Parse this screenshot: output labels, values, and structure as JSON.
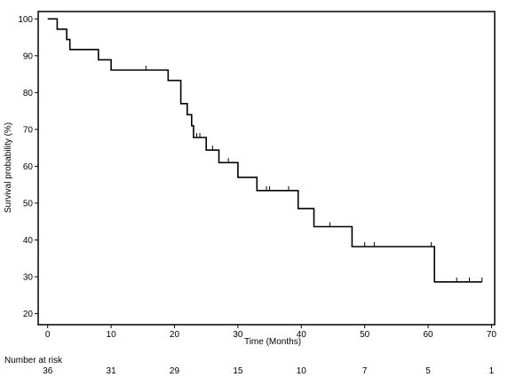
{
  "chart_data": {
    "type": "line",
    "subtype": "kaplan-meier",
    "title": "",
    "xlabel": "Time (Months)",
    "ylabel": "Survival probability (%)",
    "xlim": [
      -1.5,
      70.5
    ],
    "ylim": [
      17,
      102
    ],
    "xticks": [
      0,
      10,
      20,
      30,
      40,
      50,
      60,
      70
    ],
    "yticks": [
      20,
      30,
      40,
      50,
      60,
      70,
      80,
      90,
      100
    ],
    "grid": false,
    "series": [
      {
        "name": "",
        "color": "#000000",
        "step_points": [
          [
            0,
            100
          ],
          [
            1.5,
            100
          ],
          [
            1.5,
            97.2
          ],
          [
            3,
            97.2
          ],
          [
            3,
            94.4
          ],
          [
            3.5,
            94.4
          ],
          [
            3.5,
            91.7
          ],
          [
            8,
            91.7
          ],
          [
            8,
            88.9
          ],
          [
            10,
            88.9
          ],
          [
            10,
            86.1
          ],
          [
            19,
            86.1
          ],
          [
            19,
            83.3
          ],
          [
            21,
            83.3
          ],
          [
            21,
            77
          ],
          [
            22,
            77
          ],
          [
            22,
            74
          ],
          [
            22.7,
            74
          ],
          [
            22.7,
            71
          ],
          [
            23,
            71
          ],
          [
            23,
            67.8
          ],
          [
            25,
            67.8
          ],
          [
            25,
            64.4
          ],
          [
            27,
            64.4
          ],
          [
            27,
            61
          ],
          [
            30,
            61
          ],
          [
            30,
            57
          ],
          [
            33,
            57
          ],
          [
            33,
            53.4
          ],
          [
            39.5,
            53.4
          ],
          [
            39.5,
            48.5
          ],
          [
            42,
            48.5
          ],
          [
            42,
            43.6
          ],
          [
            48,
            43.6
          ],
          [
            48,
            38.2
          ],
          [
            61,
            38.2
          ],
          [
            61,
            28.6
          ],
          [
            68.5,
            28.6
          ]
        ],
        "censored": [
          [
            15.5,
            86.1
          ],
          [
            23.5,
            67.8
          ],
          [
            24,
            67.8
          ],
          [
            26,
            64.4
          ],
          [
            28.5,
            61
          ],
          [
            34.5,
            53.4
          ],
          [
            35,
            53.4
          ],
          [
            38,
            53.4
          ],
          [
            44.5,
            43.6
          ],
          [
            50,
            38.2
          ],
          [
            51.5,
            38.2
          ],
          [
            60.5,
            38.2
          ],
          [
            64.5,
            28.6
          ],
          [
            66.5,
            28.6
          ],
          [
            68.5,
            28.6
          ]
        ]
      }
    ],
    "risk_table": {
      "label": "Number at risk",
      "times": [
        0,
        10,
        20,
        30,
        40,
        50,
        60,
        70
      ],
      "values": [
        "36",
        "31",
        "29",
        "15",
        "10",
        "7",
        "5",
        "1"
      ]
    }
  }
}
